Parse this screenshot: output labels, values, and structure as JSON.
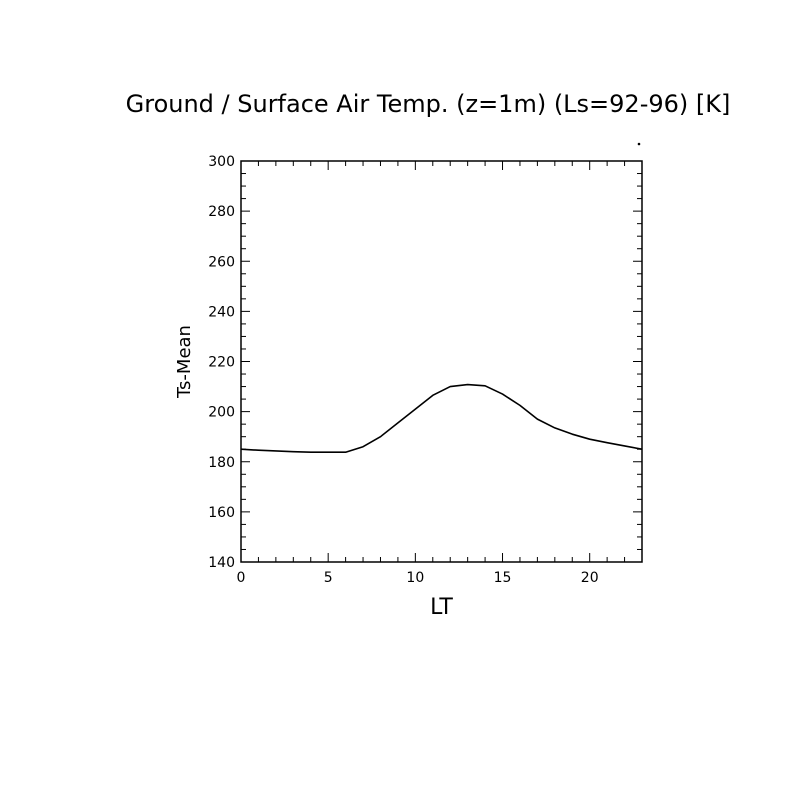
{
  "chart_data": {
    "type": "line",
    "title": "Ground / Surface Air Temp. (z=1m) (Ls=92-96) [K]",
    "xlabel": "LT",
    "ylabel": "Ts-Mean",
    "xlim": [
      0,
      23
    ],
    "ylim": [
      140,
      300
    ],
    "x_ticks": [
      0,
      5,
      10,
      15,
      20
    ],
    "y_ticks": [
      140,
      160,
      180,
      200,
      220,
      240,
      260,
      280,
      300
    ],
    "grid": false,
    "series": [
      {
        "x": [
          0,
          1,
          2,
          3,
          4,
          5,
          6,
          7,
          8,
          9,
          10,
          11,
          12,
          13,
          14,
          15,
          16,
          17,
          18,
          19,
          20,
          21,
          22,
          23
        ],
        "y": [
          185,
          184.6,
          184.3,
          184,
          183.8,
          183.8,
          183.8,
          186,
          190,
          195.5,
          201,
          206.5,
          210,
          210.8,
          210.3,
          207,
          202.5,
          197,
          193.5,
          191,
          189,
          187.6,
          186.3,
          185
        ],
        "color": "#000000"
      }
    ]
  }
}
